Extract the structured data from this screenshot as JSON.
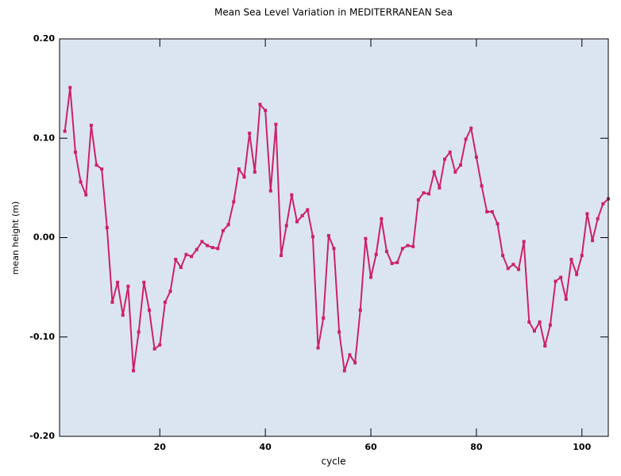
{
  "chart_data": {
    "type": "line",
    "title": "Mean Sea Level Variation in MEDITERRANEAN Sea",
    "x_label": "cycle",
    "y_label": "mean height (m)",
    "x": [
      2,
      3,
      4,
      5,
      6,
      7,
      8,
      9,
      10,
      11,
      12,
      13,
      14,
      15,
      16,
      17,
      18,
      19,
      20,
      21,
      22,
      23,
      24,
      25,
      26,
      27,
      28,
      29,
      30,
      31,
      32,
      33,
      34,
      35,
      36,
      37,
      38,
      39,
      40,
      41,
      42,
      43,
      44,
      45,
      46,
      47,
      48,
      49,
      50,
      51,
      52,
      53,
      54,
      55,
      56,
      57,
      58,
      59,
      60,
      61,
      62,
      63,
      64,
      65,
      66,
      67,
      68,
      69,
      70,
      71,
      72,
      73,
      74,
      75,
      76,
      77,
      78,
      79,
      80,
      81,
      82,
      83,
      84,
      85,
      86,
      87,
      88,
      89,
      90,
      91,
      92,
      93,
      94,
      95,
      96,
      97,
      98,
      99,
      100,
      101,
      102,
      103,
      104,
      105
    ],
    "series": [
      {
        "name": "mean height",
        "color": "#cc2266",
        "values": [
          0.107,
          0.151,
          0.086,
          0.056,
          0.043,
          0.113,
          0.073,
          0.069,
          0.01,
          -0.065,
          -0.045,
          -0.078,
          -0.049,
          -0.134,
          -0.095,
          -0.045,
          -0.073,
          -0.112,
          -0.108,
          -0.065,
          -0.054,
          -0.022,
          -0.03,
          -0.017,
          -0.019,
          -0.012,
          -0.004,
          -0.008,
          -0.01,
          -0.011,
          0.007,
          0.013,
          0.036,
          0.069,
          0.061,
          0.105,
          0.066,
          0.134,
          0.128,
          0.047,
          0.114,
          -0.018,
          0.012,
          0.043,
          0.016,
          0.022,
          0.028,
          0.001,
          -0.111,
          -0.081,
          0.002,
          -0.011,
          -0.095,
          -0.134,
          -0.118,
          -0.126,
          -0.073,
          -0.001,
          -0.04,
          -0.017,
          0.019,
          -0.014,
          -0.026,
          -0.025,
          -0.011,
          -0.008,
          -0.009,
          0.038,
          0.045,
          0.044,
          0.066,
          0.05,
          0.079,
          0.086,
          0.066,
          0.073,
          0.099,
          0.11,
          0.081,
          0.052,
          0.026,
          0.026,
          0.014,
          -0.018,
          -0.031,
          -0.027,
          -0.032,
          -0.004,
          -0.085,
          -0.094,
          -0.085,
          -0.109,
          -0.088,
          -0.044,
          -0.04,
          -0.062,
          -0.022,
          -0.037,
          -0.018,
          0.024,
          -0.003,
          0.019,
          0.034,
          0.039
        ]
      }
    ],
    "xlim": [
      1,
      105
    ],
    "ylim": [
      -0.2,
      0.2
    ],
    "xticks": [
      20,
      40,
      60,
      80,
      100
    ],
    "yticks": [
      {
        "value": -0.2,
        "label": "-0.20"
      },
      {
        "value": -0.1,
        "label": "-0.10"
      },
      {
        "value": 0,
        "label": "0.00"
      },
      {
        "value": 0.1,
        "label": "0.10"
      },
      {
        "value": 0.2,
        "label": "0.20"
      }
    ],
    "background": "#dbe5f1"
  }
}
